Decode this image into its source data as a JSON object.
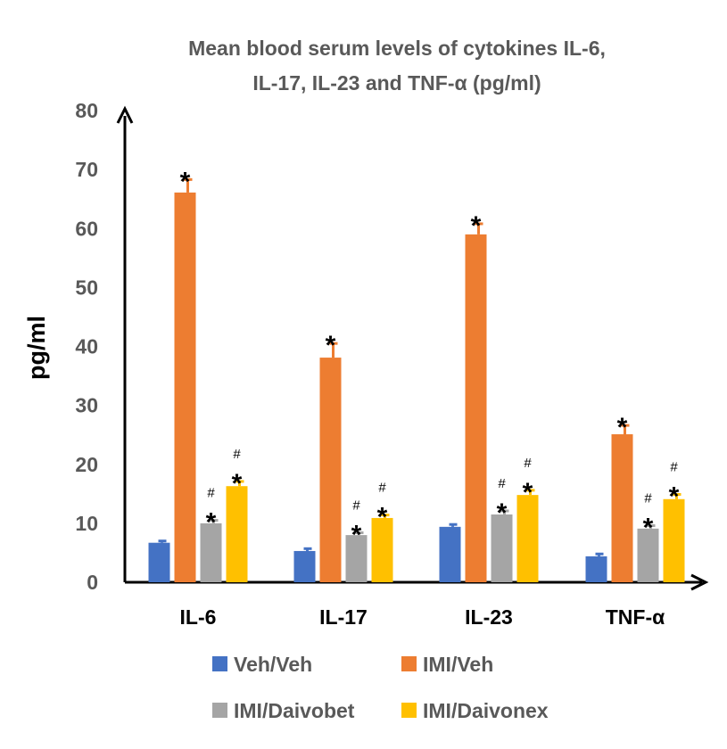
{
  "chart_data": {
    "type": "bar",
    "title_lines": [
      "Mean blood serum levels of cytokines IL-6,",
      "IL-17, IL-23 and TNF-α (pg/ml)"
    ],
    "xlabel": "",
    "ylabel": "pg/ml",
    "ylim": [
      0,
      80
    ],
    "yticks": [
      0,
      10,
      20,
      30,
      40,
      50,
      60,
      70,
      80
    ],
    "categories": [
      "IL-6",
      "IL-17",
      "IL-23",
      "TNF-α"
    ],
    "grid": false,
    "legend_position": "bottom",
    "series": [
      {
        "name": "Veh/Veh",
        "color": "#4472C4",
        "values": [
          6.7,
          5.3,
          9.4,
          4.4
        ],
        "errors": [
          0.3,
          0.4,
          0.4,
          0.4
        ],
        "marks": [
          "",
          "",
          "",
          ""
        ],
        "hash": [
          "",
          "",
          "",
          ""
        ]
      },
      {
        "name": "IMI/Veh",
        "color": "#ED7D31",
        "values": [
          66.1,
          38.1,
          59.0,
          25.1
        ],
        "errors": [
          2.2,
          2.4,
          1.8,
          1.5
        ],
        "marks": [
          "*",
          "*",
          "*",
          "*"
        ],
        "hash": [
          "",
          "",
          "",
          ""
        ]
      },
      {
        "name": "IMI/Daivobet",
        "color": "#A5A5A5",
        "values": [
          10.0,
          8.0,
          11.5,
          9.1
        ],
        "errors": [
          0.5,
          0.4,
          0.6,
          0.5
        ],
        "marks": [
          "*",
          "*",
          "*",
          "*"
        ],
        "hash": [
          "#",
          "#",
          "#",
          "#"
        ]
      },
      {
        "name": "IMI/Daivonex",
        "color": "#FFC000",
        "values": [
          16.3,
          10.9,
          14.8,
          14.1
        ],
        "errors": [
          0.8,
          0.5,
          0.8,
          0.8
        ],
        "marks": [
          "*",
          "*",
          "*",
          "*"
        ],
        "hash": [
          "#",
          "#",
          "#",
          "#"
        ]
      }
    ]
  }
}
